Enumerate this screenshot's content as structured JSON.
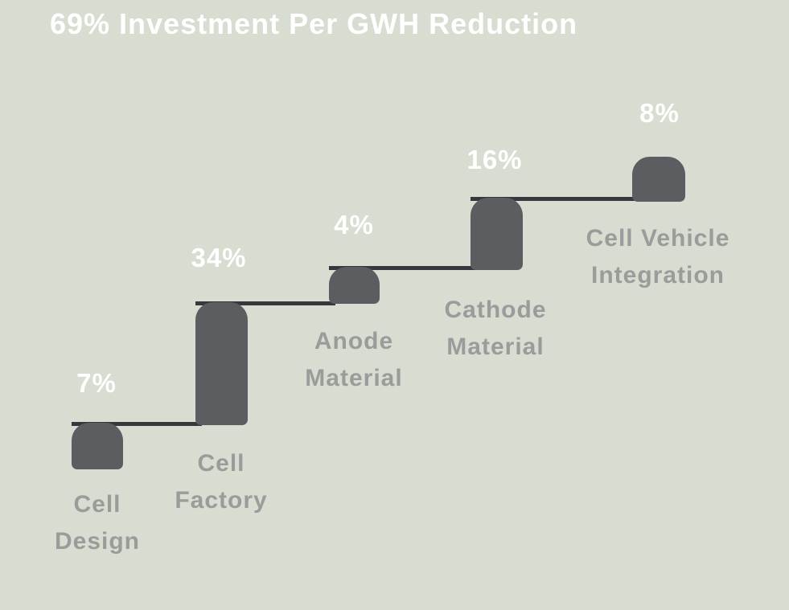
{
  "page": {
    "background_color": "#d7ddd1"
  },
  "chart_data": {
    "type": "bar",
    "variant": "waterfall-steps",
    "title": "69% Investment Per GWH Reduction",
    "total_value": 69,
    "unit": "%",
    "categories": [
      "Cell Design",
      "Cell Factory",
      "Anode Material",
      "Cathode Material",
      "Cell Vehicle Integration"
    ],
    "values": [
      7,
      34,
      4,
      16,
      8
    ],
    "xlabel": "",
    "ylabel": "",
    "legend": "none",
    "axes_visible": false,
    "grid": false,
    "points": [
      {
        "label": "Cell Design",
        "label_line1": "Cell",
        "label_line2": "Design",
        "value": 7,
        "value_label": "7%"
      },
      {
        "label": "Cell Factory",
        "label_line1": "Cell",
        "label_line2": "Factory",
        "value": 34,
        "value_label": "34%"
      },
      {
        "label": "Anode Material",
        "label_line1": "Anode",
        "label_line2": "Material",
        "value": 4,
        "value_label": "4%"
      },
      {
        "label": "Cathode Material",
        "label_line1": "Cathode",
        "label_line2": "Material",
        "value": 16,
        "value_label": "16%"
      },
      {
        "label": "Cell Vehicle Integration",
        "label_line1": "Cell Vehicle",
        "label_line2": "Integration",
        "value": 8,
        "value_label": "8%"
      }
    ],
    "colors": {
      "bar": "#5b5d61",
      "connector_line": "#35383c",
      "category_label": "#9b9b9b",
      "value_label": "#ffffff",
      "title": "#ffffff",
      "background": "#d7ddd1"
    }
  }
}
